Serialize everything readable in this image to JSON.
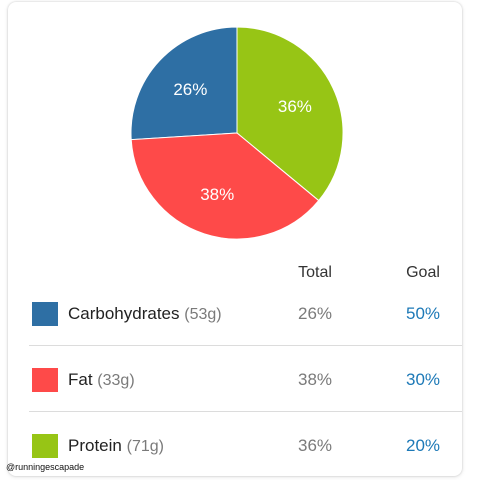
{
  "colors": {
    "carbs": "#2e6fa4",
    "fat": "#fe4a49",
    "protein": "#97c515",
    "goal_text": "#1d79b7"
  },
  "chart_data": {
    "type": "pie",
    "slices": [
      {
        "label": "26%",
        "value": 26,
        "color": "#2e6fa4"
      },
      {
        "label": "36%",
        "value": 36,
        "color": "#97c515"
      },
      {
        "label": "38%",
        "value": 38,
        "color": "#fe4a49"
      }
    ]
  },
  "table": {
    "header_total": "Total",
    "header_goal": "Goal",
    "rows": [
      {
        "name": "Carbohydrates",
        "grams": "(53g)",
        "total": "26%",
        "goal": "50%"
      },
      {
        "name": "Fat",
        "grams": "(33g)",
        "total": "38%",
        "goal": "30%"
      },
      {
        "name": "Protein",
        "grams": "(71g)",
        "total": "36%",
        "goal": "20%"
      }
    ]
  },
  "watermark": "@runningescapade"
}
